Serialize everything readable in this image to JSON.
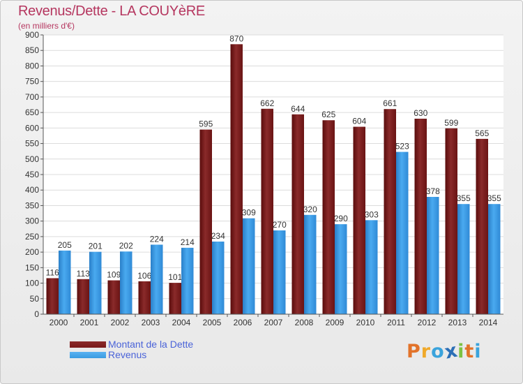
{
  "title": "Revenus/Dette - LA COUYèRE",
  "subtitle": "(en milliers d'€)",
  "logo_text": "Proxiti",
  "colors": {
    "dette": "#7a1a1a",
    "revenus": "#3a9be0",
    "title": "#b5365f",
    "legend_text": "#4a63d8"
  },
  "chart_data": {
    "type": "bar",
    "title": "Revenus/Dette - LA COUYèRE",
    "ylabel": "(en milliers d'€)",
    "xlabel": "",
    "ylim": [
      0,
      900
    ],
    "ytick_step": 50,
    "grid": true,
    "legend_position": "bottom-left",
    "categories": [
      "2000",
      "2001",
      "2002",
      "2003",
      "2004",
      "2005",
      "2006",
      "2007",
      "2008",
      "2009",
      "2010",
      "2011",
      "2012",
      "2013",
      "2014"
    ],
    "series": [
      {
        "name": "Montant de la Dette",
        "values": [
          116,
          113,
          109,
          106,
          101,
          595,
          870,
          662,
          644,
          625,
          604,
          661,
          630,
          599,
          565
        ]
      },
      {
        "name": "Revenus",
        "values": [
          205,
          201,
          202,
          224,
          214,
          234,
          309,
          270,
          320,
          290,
          303,
          523,
          378,
          355,
          355
        ]
      }
    ]
  }
}
